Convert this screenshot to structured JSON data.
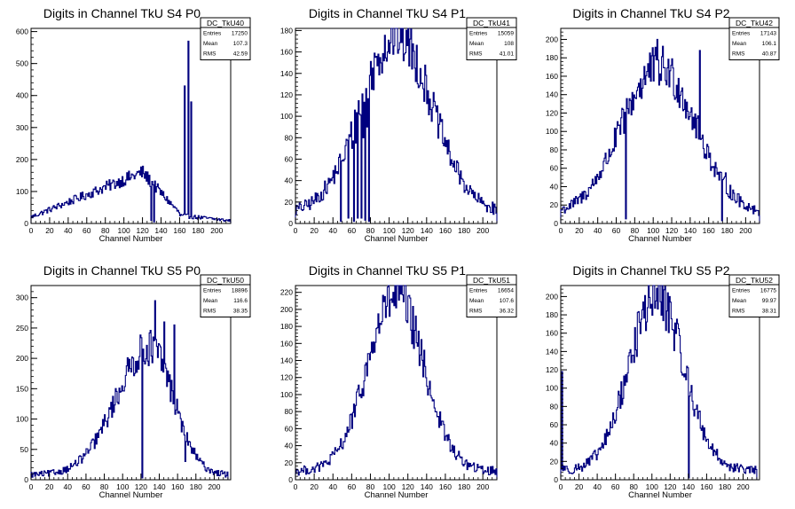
{
  "colors": {
    "line": "#00007f",
    "frame": "#000000",
    "background": "#ffffff"
  },
  "chart_data": [
    {
      "type": "histogram",
      "title": "Digits in Channel TkU S4 P0",
      "xlabel": "Channel Number",
      "ylabel": "",
      "xlim": [
        0,
        215
      ],
      "ylim": [
        0,
        610
      ],
      "xticks": [
        0,
        20,
        40,
        60,
        80,
        100,
        120,
        140,
        160,
        180,
        200
      ],
      "yticks": [
        0,
        100,
        200,
        300,
        400,
        500,
        600
      ],
      "stats": {
        "name": "DC_TkU40",
        "rows": [
          [
            "Entries",
            "17250"
          ],
          [
            "Mean",
            "107.3"
          ],
          [
            "RMS",
            "42.59"
          ]
        ]
      },
      "shape": "ramp",
      "spikes": [
        [
          129,
          10
        ],
        [
          132,
          5
        ],
        [
          165,
          430
        ],
        [
          169,
          570
        ],
        [
          172,
          380
        ]
      ]
    },
    {
      "type": "histogram",
      "title": "Digits in Channel TkU S4 P1",
      "xlabel": "Channel Number",
      "ylabel": "",
      "xlim": [
        0,
        215
      ],
      "ylim": [
        0,
        182
      ],
      "xticks": [
        0,
        20,
        40,
        60,
        80,
        100,
        120,
        140,
        160,
        180,
        200
      ],
      "yticks": [
        0,
        20,
        40,
        60,
        80,
        100,
        120,
        140,
        160,
        180
      ],
      "stats": {
        "name": "DC_TkU41",
        "rows": [
          [
            "Entries",
            "15059"
          ],
          [
            "Mean",
            "108"
          ],
          [
            "RMS",
            "41.01"
          ]
        ]
      },
      "shape": "gauss",
      "mean": 108,
      "sigma": 38,
      "peak": 165,
      "spikes": [
        [
          48,
          2
        ],
        [
          52,
          60
        ],
        [
          56,
          5
        ],
        [
          60,
          70
        ],
        [
          62,
          2
        ],
        [
          64,
          75
        ],
        [
          66,
          5
        ],
        [
          70,
          5
        ],
        [
          72,
          80
        ],
        [
          74,
          3
        ],
        [
          76,
          90
        ],
        [
          78,
          2
        ]
      ]
    },
    {
      "type": "histogram",
      "title": "Digits in Channel TkU S4 P2",
      "xlabel": "Channel Number",
      "ylabel": "",
      "xlim": [
        0,
        215
      ],
      "ylim": [
        0,
        212
      ],
      "xticks": [
        0,
        20,
        40,
        60,
        80,
        100,
        120,
        140,
        160,
        180,
        200
      ],
      "yticks": [
        0,
        20,
        40,
        60,
        80,
        100,
        120,
        140,
        160,
        180,
        200
      ],
      "stats": {
        "name": "DC_TkU42",
        "rows": [
          [
            "Entries",
            "17143"
          ],
          [
            "Mean",
            "106.1"
          ],
          [
            "RMS",
            "40.87"
          ]
        ]
      },
      "shape": "gauss",
      "mean": 106,
      "sigma": 40,
      "peak": 160,
      "spikes": [
        [
          70,
          5
        ],
        [
          104,
          200
        ],
        [
          150,
          188
        ],
        [
          174,
          3
        ],
        [
          178,
          55
        ]
      ]
    },
    {
      "type": "histogram",
      "title": "Digits in Channel TkU S5 P0",
      "xlabel": "Channel Number",
      "ylabel": "",
      "xlim": [
        0,
        218
      ],
      "ylim": [
        0,
        320
      ],
      "xticks": [
        0,
        20,
        40,
        60,
        80,
        100,
        120,
        140,
        160,
        180,
        200
      ],
      "yticks": [
        0,
        50,
        100,
        150,
        200,
        250,
        300
      ],
      "stats": {
        "name": "DC_TkU50",
        "rows": [
          [
            "Entries",
            "18896"
          ],
          [
            "Mean",
            "116.6"
          ],
          [
            "RMS",
            "38.35"
          ]
        ]
      },
      "shape": "skew",
      "mean": 130,
      "sigma": 32,
      "peak": 210,
      "spikes": [
        [
          121,
          3
        ],
        [
          135,
          295
        ],
        [
          145,
          260
        ],
        [
          156,
          255
        ],
        [
          168,
          30
        ]
      ]
    },
    {
      "type": "histogram",
      "title": "Digits in Channel TkU S5 P1",
      "xlabel": "Channel Number",
      "ylabel": "",
      "xlim": [
        0,
        215
      ],
      "ylim": [
        0,
        228
      ],
      "xticks": [
        0,
        20,
        40,
        60,
        80,
        100,
        120,
        140,
        160,
        180,
        200
      ],
      "yticks": [
        0,
        20,
        40,
        60,
        80,
        100,
        120,
        140,
        160,
        180,
        200,
        220
      ],
      "stats": {
        "name": "DC_TkU51",
        "rows": [
          [
            "Entries",
            "16654"
          ],
          [
            "Mean",
            "107.6"
          ],
          [
            "RMS",
            "36.32"
          ]
        ]
      },
      "shape": "gauss",
      "mean": 107,
      "sigma": 30,
      "peak": 205,
      "spikes": [
        [
          104,
          220
        ],
        [
          112,
          218
        ]
      ]
    },
    {
      "type": "histogram",
      "title": "Digits in Channel TkU S5 P2",
      "xlabel": "Channel Number",
      "ylabel": "",
      "xlim": [
        0,
        218
      ],
      "ylim": [
        0,
        212
      ],
      "xticks": [
        0,
        20,
        40,
        60,
        80,
        100,
        120,
        140,
        160,
        180,
        200
      ],
      "yticks": [
        0,
        20,
        40,
        60,
        80,
        100,
        120,
        140,
        160,
        180,
        200
      ],
      "stats": {
        "name": "DC_TkU52",
        "rows": [
          [
            "Entries",
            "16775"
          ],
          [
            "Mean",
            "99.97"
          ],
          [
            "RMS",
            "38.31"
          ]
        ]
      },
      "shape": "gauss",
      "mean": 105,
      "sigma": 30,
      "peak": 190,
      "spikes": [
        [
          1,
          118
        ],
        [
          2,
          10
        ],
        [
          3,
          15
        ],
        [
          119,
          200
        ],
        [
          140,
          2
        ]
      ]
    }
  ]
}
